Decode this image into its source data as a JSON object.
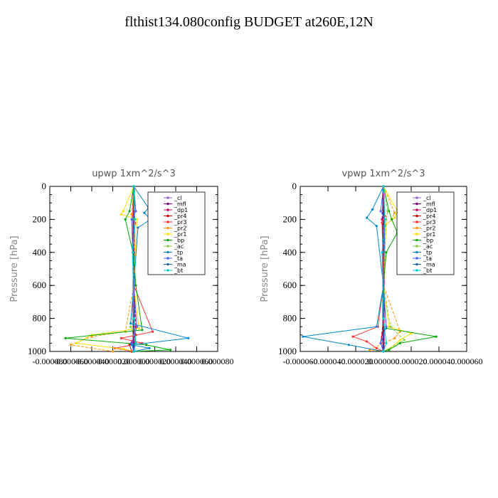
{
  "title": "flthist134.080config  BUDGET at260E,12N",
  "chart_data": [
    {
      "type": "line",
      "title": "upwp   1xm^2/s^3",
      "ylabel": "Pressure [hPa]",
      "xlim": [
        -8e-05,
        8e-05
      ],
      "ylim": [
        0,
        1000
      ],
      "y_inverted": true,
      "x_tick_labels": [
        "-0.000080",
        "-0.000060",
        "-0.000040",
        "-0.000020",
        "0.000000",
        "0.000020",
        "0.000040",
        "0.000060",
        "0.000080"
      ],
      "y_tick_labels": [
        "0",
        "200",
        "400",
        "600",
        "800",
        "1000"
      ],
      "legend_position": "top-right",
      "series": [
        {
          "name": "_cl",
          "color": "#9966cc",
          "x": [
            0,
            0,
            0,
            0,
            0
          ],
          "y": [
            0,
            250,
            500,
            750,
            1000
          ]
        },
        {
          "name": "_mfl",
          "color": "#800080",
          "x": [
            0,
            0,
            0,
            0,
            0
          ],
          "y": [
            0,
            250,
            500,
            750,
            1000
          ]
        },
        {
          "name": "_dp1",
          "color": "#cc0066",
          "x": [
            0,
            1e-06,
            -1e-06,
            0,
            2e-06,
            -2e-06,
            0
          ],
          "y": [
            0,
            200,
            400,
            600,
            850,
            950,
            1000
          ]
        },
        {
          "name": "_pr4",
          "color": "#cc0000",
          "x": [
            0,
            0,
            0,
            0,
            2e-06,
            -4e-06,
            -2e-06
          ],
          "y": [
            0,
            300,
            600,
            850,
            900,
            960,
            1000
          ]
        },
        {
          "name": "_pr3",
          "color": "#ff3333",
          "x": [
            0,
            -1e-06,
            1e-06,
            0,
            1.8e-05,
            -1.2e-05,
            8e-06,
            -1.8e-05,
            0
          ],
          "y": [
            0,
            180,
            220,
            600,
            880,
            920,
            950,
            980,
            1000
          ]
        },
        {
          "name": "_pr2",
          "color": "#ff9900",
          "x": [
            0,
            -2e-06,
            1e-06,
            0,
            -8e-06,
            -4e-05,
            -6e-05,
            -2e-05
          ],
          "y": [
            0,
            170,
            230,
            600,
            880,
            910,
            960,
            1000
          ]
        },
        {
          "name": "_pr1",
          "color": "#ffdd00",
          "x": [
            0,
            -1e-05,
            -1.2e-05,
            3e-06,
            0,
            5e-06,
            -4e-05,
            -5.5e-05,
            -1e-05,
            0
          ],
          "y": [
            0,
            150,
            170,
            200,
            600,
            860,
            900,
            950,
            985,
            1000
          ]
        },
        {
          "name": "_bp",
          "color": "#00aa00",
          "x": [
            0,
            -4e-06,
            -8e-06,
            0,
            2e-06,
            8e-06,
            -6.5e-05,
            1.2e-05,
            3.5e-05,
            0
          ],
          "y": [
            0,
            150,
            200,
            420,
            600,
            870,
            920,
            960,
            990,
            1000
          ]
        },
        {
          "name": "_ac",
          "color": "#88cc44",
          "x": [
            0,
            2e-06,
            -2e-06,
            0,
            -3e-06,
            2e-06,
            0
          ],
          "y": [
            0,
            150,
            200,
            600,
            850,
            950,
            1000
          ]
        },
        {
          "name": "_tp",
          "color": "#0088cc",
          "x": [
            0,
            1.4e-05,
            1e-05,
            1.6e-05,
            4e-06,
            0,
            -3e-06,
            5.2e-05,
            -2e-06,
            1.5e-05,
            0
          ],
          "y": [
            0,
            130,
            160,
            200,
            250,
            600,
            830,
            920,
            960,
            980,
            1000
          ]
        },
        {
          "name": "_ta",
          "color": "#4466ff",
          "x": [
            0,
            2e-06,
            -2e-06,
            0,
            3e-06,
            -2e-06,
            0
          ],
          "y": [
            0,
            150,
            200,
            600,
            850,
            950,
            1000
          ]
        },
        {
          "name": "_ma",
          "color": "#2266aa",
          "x": [
            0,
            0,
            0,
            0
          ],
          "y": [
            0,
            400,
            800,
            1000
          ]
        },
        {
          "name": "_bt",
          "color": "#00cccc",
          "x": [
            0,
            1e-06,
            -1e-06,
            0,
            2e-06,
            0
          ],
          "y": [
            0,
            200,
            400,
            800,
            950,
            1000
          ]
        }
      ]
    },
    {
      "type": "line",
      "title": "vpwp   1xm^2/s^3",
      "ylabel": "Pressure [hPa]",
      "xlim": [
        -6e-05,
        6e-05
      ],
      "ylim": [
        0,
        1000
      ],
      "y_inverted": true,
      "x_tick_labels": [
        "-0.000060",
        "-0.000040",
        "-0.000020",
        "0.000000",
        "0.000020",
        "0.000040",
        "0.000060"
      ],
      "y_tick_labels": [
        "0",
        "200",
        "400",
        "600",
        "800",
        "1000"
      ],
      "legend_position": "top-right",
      "series": [
        {
          "name": "_cl",
          "color": "#9966cc",
          "x": [
            0,
            0,
            0,
            0,
            0
          ],
          "y": [
            0,
            250,
            500,
            750,
            1000
          ]
        },
        {
          "name": "_mfl",
          "color": "#800080",
          "x": [
            0,
            0,
            0,
            0,
            0
          ],
          "y": [
            0,
            250,
            500,
            750,
            1000
          ]
        },
        {
          "name": "_dp1",
          "color": "#cc0066",
          "x": [
            0,
            -1e-06,
            1e-06,
            0,
            -2e-06,
            0
          ],
          "y": [
            0,
            200,
            400,
            800,
            950,
            1000
          ]
        },
        {
          "name": "_pr4",
          "color": "#cc0000",
          "x": [
            0,
            0,
            0,
            0,
            -2e-06,
            0
          ],
          "y": [
            0,
            300,
            600,
            850,
            950,
            1000
          ]
        },
        {
          "name": "_pr3",
          "color": "#ff3333",
          "x": [
            0,
            1e-06,
            -1e-06,
            0,
            -4e-06,
            -2.2e-05,
            -1.2e-05,
            -5e-06,
            0
          ],
          "y": [
            0,
            180,
            220,
            600,
            850,
            910,
            940,
            980,
            1000
          ]
        },
        {
          "name": "_pr2",
          "color": "#ff9900",
          "x": [
            0,
            8e-06,
            6e-06,
            1e-06,
            0,
            1.2e-05,
            8e-06,
            -1e-05,
            0
          ],
          "y": [
            0,
            160,
            200,
            240,
            600,
            880,
            920,
            990,
            1000
          ]
        },
        {
          "name": "_pr1",
          "color": "#ffdd00",
          "x": [
            0,
            1e-05,
            8e-06,
            2e-06,
            0,
            4e-06,
            2e-05,
            1.2e-05,
            5e-06,
            0
          ],
          "y": [
            0,
            150,
            190,
            230,
            600,
            850,
            890,
            930,
            980,
            1000
          ]
        },
        {
          "name": "_bp",
          "color": "#00aa00",
          "x": [
            0,
            4e-06,
            6e-06,
            1e-05,
            2e-06,
            0,
            2e-06,
            3.8e-05,
            1.2e-05,
            4e-06,
            0
          ],
          "y": [
            0,
            150,
            200,
            280,
            400,
            600,
            860,
            910,
            950,
            990,
            1000
          ]
        },
        {
          "name": "_ac",
          "color": "#88cc44",
          "x": [
            0,
            3e-06,
            2e-06,
            0,
            5e-06,
            1.5e-05,
            0
          ],
          "y": [
            0,
            150,
            200,
            600,
            850,
            930,
            1000
          ]
        },
        {
          "name": "_tp",
          "color": "#0088cc",
          "x": [
            0,
            -8e-06,
            -1.2e-05,
            -5e-06,
            0,
            -5e-06,
            -5.8e-05,
            -2.5e-05,
            0
          ],
          "y": [
            0,
            140,
            190,
            240,
            600,
            850,
            910,
            960,
            1000
          ]
        },
        {
          "name": "_ta",
          "color": "#4466ff",
          "x": [
            0,
            -2e-06,
            1e-06,
            0,
            2e-06,
            -2e-06,
            0
          ],
          "y": [
            0,
            150,
            200,
            600,
            850,
            950,
            1000
          ]
        },
        {
          "name": "_ma",
          "color": "#2266aa",
          "x": [
            0,
            0,
            0,
            0
          ],
          "y": [
            0,
            400,
            800,
            1000
          ]
        },
        {
          "name": "_bt",
          "color": "#00cccc",
          "x": [
            0,
            1e-06,
            -1e-06,
            0,
            2e-06,
            0
          ],
          "y": [
            0,
            200,
            400,
            800,
            950,
            1000
          ]
        }
      ]
    }
  ]
}
